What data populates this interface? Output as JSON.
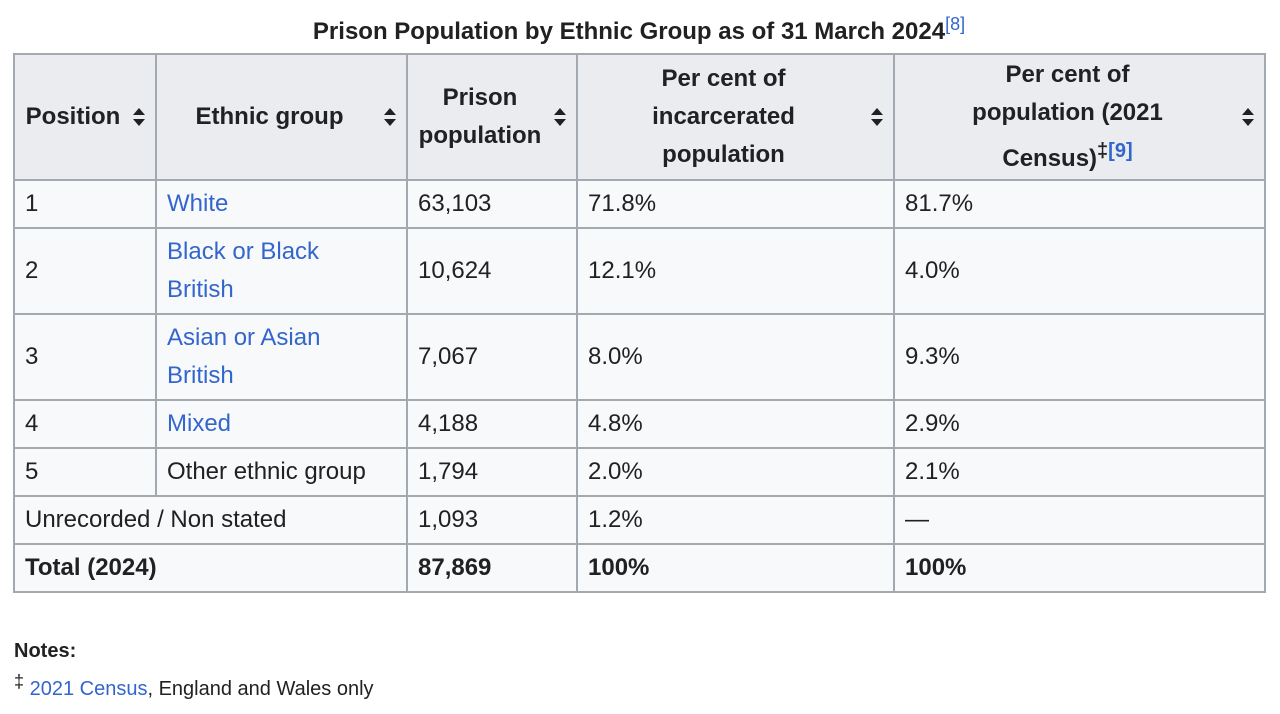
{
  "caption": {
    "title": "Prison Population by Ethnic Group as of 31 March 2024",
    "ref": "[8]"
  },
  "columns": {
    "position": "Position",
    "ethnic_group": "Ethnic group",
    "prison_pop_line1": "Prison",
    "prison_pop_line2": "population",
    "pct_incarcerated_line1": "Per cent of",
    "pct_incarcerated_line2": "incarcerated",
    "pct_incarcerated_line3": "population",
    "pct_population_line1": "Per cent of",
    "pct_population_line2": "population (2021",
    "pct_population_line3": "Census)",
    "pct_population_mark": "‡",
    "pct_population_ref": "[9]"
  },
  "rows": [
    {
      "position": "1",
      "group": "White",
      "prison": "63,103",
      "pct_incarcerated": "71.8%",
      "pct_population": "81.7%"
    },
    {
      "position": "2",
      "group_line1": "Black or Black",
      "group_line2": "British",
      "prison": "10,624",
      "pct_incarcerated": "12.1%",
      "pct_population": "4.0%"
    },
    {
      "position": "3",
      "group_line1": "Asian or Asian",
      "group_line2": "British",
      "prison": "7,067",
      "pct_incarcerated": "8.0%",
      "pct_population": "9.3%"
    },
    {
      "position": "4",
      "group": "Mixed",
      "prison": "4,188",
      "pct_incarcerated": "4.8%",
      "pct_population": "2.9%"
    },
    {
      "position": "5",
      "group": "Other ethnic group",
      "prison": "1,794",
      "pct_incarcerated": "2.0%",
      "pct_population": "2.1%"
    },
    {
      "label": "Unrecorded / Non stated",
      "prison": "1,093",
      "pct_incarcerated": "1.2%",
      "pct_population": "—"
    },
    {
      "label": "Total (2024)",
      "prison": "87,869",
      "pct_incarcerated": "100%",
      "pct_population": "100%"
    }
  ],
  "notes": {
    "title": "Notes:",
    "mark": "‡",
    "link": "2021 Census",
    "text": ", England and Wales only"
  },
  "colors": {
    "link": "#3366cc",
    "header_bg": "#eaecf0",
    "cell_bg": "#f8f9fa",
    "border": "#a2a9b1",
    "text": "#202122"
  }
}
